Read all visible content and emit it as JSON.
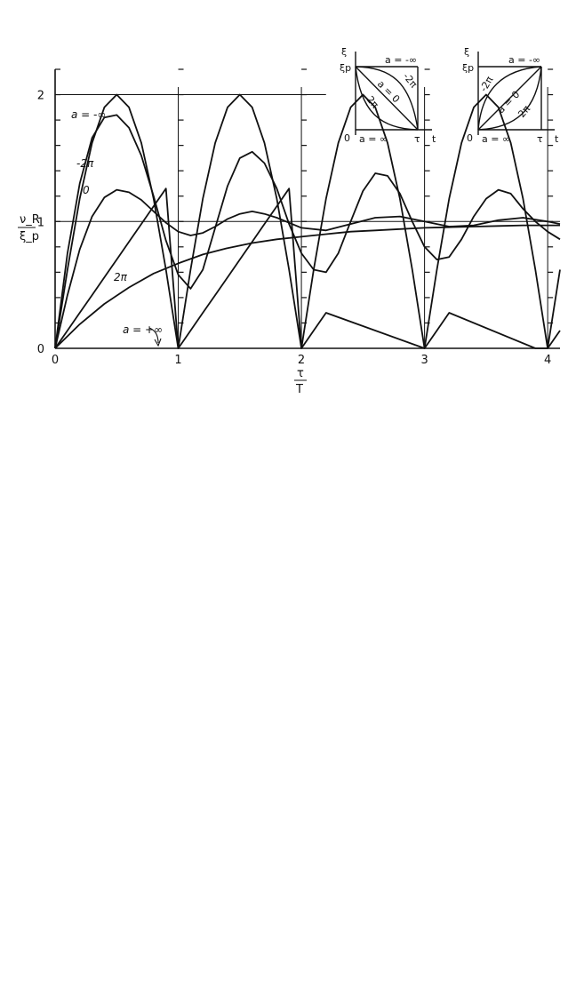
{
  "chart_data": {
    "type": "line",
    "xlabel": "τ/T",
    "xlabel_num": "τ",
    "xlabel_den": "T",
    "ylabel": "ν_R/ξ_p",
    "ylabel_num": "ν_R",
    "ylabel_den": "ξ_p",
    "xlim": [
      0,
      4.1
    ],
    "ylim": [
      0,
      2.2
    ],
    "x_ticks": [
      0,
      1,
      2,
      3,
      4
    ],
    "x_tick_labels": [
      "0",
      "1",
      "2",
      "3",
      "4"
    ],
    "y_ticks": [
      0,
      1,
      2
    ],
    "y_tick_labels": [
      "0",
      "1",
      "2"
    ],
    "reference_lines": [
      1,
      2
    ],
    "grid": "major vertical lines at integers",
    "series": [
      {
        "name": "a = -∞",
        "label": "a = -∞",
        "x": [
          0,
          0.1,
          0.2,
          0.3,
          0.4,
          0.5,
          0.6,
          0.7,
          0.8,
          0.9,
          1.0,
          1.1,
          1.2,
          1.3,
          1.4,
          1.5,
          1.6,
          1.7,
          1.8,
          1.9,
          2.0,
          2.1,
          2.2,
          2.3,
          2.4,
          2.5,
          2.6,
          2.7,
          2.8,
          2.9,
          3.0,
          3.1,
          3.2,
          3.3,
          3.4,
          3.5,
          3.6,
          3.7,
          3.8,
          3.9,
          4.0,
          4.1
        ],
        "y": [
          0,
          0.62,
          1.18,
          1.62,
          1.9,
          2.0,
          1.9,
          1.62,
          1.18,
          0.62,
          0,
          0.62,
          1.18,
          1.62,
          1.9,
          2.0,
          1.9,
          1.62,
          1.18,
          0.62,
          0,
          0.62,
          1.18,
          1.62,
          1.9,
          2.0,
          1.9,
          1.62,
          1.18,
          0.62,
          0,
          0.62,
          1.18,
          1.62,
          1.9,
          2.0,
          1.9,
          1.62,
          1.18,
          0.62,
          0,
          0.62
        ]
      },
      {
        "name": "-2π",
        "label": "-2π",
        "x": [
          0,
          0.1,
          0.2,
          0.3,
          0.4,
          0.5,
          0.6,
          0.7,
          0.8,
          0.9,
          1.0,
          1.1,
          1.2,
          1.3,
          1.4,
          1.5,
          1.6,
          1.7,
          1.8,
          1.9,
          2.0,
          2.1,
          2.2,
          2.3,
          2.4,
          2.5,
          2.6,
          2.7,
          2.8,
          2.9,
          3.0,
          3.1,
          3.2,
          3.3,
          3.4,
          3.5,
          3.6,
          3.7,
          3.8,
          3.9,
          4.0,
          4.1
        ],
        "y": [
          0,
          0.75,
          1.3,
          1.66,
          1.82,
          1.84,
          1.74,
          1.52,
          1.2,
          0.85,
          0.58,
          0.47,
          0.62,
          0.95,
          1.28,
          1.5,
          1.55,
          1.46,
          1.26,
          0.98,
          0.75,
          0.62,
          0.6,
          0.75,
          1.0,
          1.24,
          1.38,
          1.36,
          1.22,
          1.0,
          0.8,
          0.7,
          0.72,
          0.86,
          1.04,
          1.18,
          1.25,
          1.22,
          1.1,
          1.0,
          0.92,
          0.86
        ]
      },
      {
        "name": "0",
        "label": "0",
        "x": [
          0,
          0.1,
          0.2,
          0.3,
          0.4,
          0.5,
          0.6,
          0.7,
          0.8,
          0.9,
          1.0,
          1.1,
          1.2,
          1.3,
          1.4,
          1.5,
          1.6,
          1.7,
          1.8,
          1.9,
          2.0,
          2.2,
          2.4,
          2.6,
          2.8,
          3.0,
          3.2,
          3.4,
          3.6,
          3.8,
          4.0,
          4.1
        ],
        "y": [
          0,
          0.42,
          0.78,
          1.04,
          1.19,
          1.25,
          1.23,
          1.17,
          1.08,
          0.99,
          0.92,
          0.89,
          0.91,
          0.96,
          1.02,
          1.06,
          1.08,
          1.06,
          1.03,
          0.99,
          0.95,
          0.93,
          0.98,
          1.03,
          1.04,
          1.0,
          0.96,
          0.97,
          1.01,
          1.03,
          1.0,
          0.98
        ]
      },
      {
        "name": "2π",
        "label": "2π",
        "x": [
          0,
          0.2,
          0.4,
          0.6,
          0.8,
          1.0,
          1.2,
          1.4,
          1.6,
          1.8,
          2.0,
          2.2,
          2.4,
          2.6,
          2.8,
          3.0,
          3.2,
          3.4,
          3.6,
          3.8,
          4.0,
          4.1
        ],
        "y": [
          0,
          0.19,
          0.35,
          0.48,
          0.59,
          0.67,
          0.74,
          0.79,
          0.83,
          0.86,
          0.88,
          0.9,
          0.92,
          0.93,
          0.94,
          0.95,
          0.955,
          0.96,
          0.965,
          0.97,
          0.97,
          0.97
        ]
      },
      {
        "name": "a = +∞",
        "label": "a = +∞",
        "x": [
          0,
          0.1,
          0.2,
          0.3,
          0.4,
          0.5,
          0.6,
          0.7,
          0.8,
          0.9,
          1.0,
          1.05,
          1.1,
          1.2,
          1.3,
          1.4,
          1.5,
          1.6,
          1.7,
          1.8,
          1.9,
          2.0,
          2.05,
          2.1,
          2.2,
          3.0,
          3.1,
          3.2,
          3.9,
          4.0,
          4.1
        ],
        "y": [
          0,
          0.14,
          0.28,
          0.42,
          0.56,
          0.7,
          0.84,
          0.98,
          1.12,
          1.26,
          0,
          0.07,
          0.14,
          0.28,
          0.42,
          0.56,
          0.7,
          0.84,
          0.98,
          1.12,
          1.26,
          0,
          0.07,
          0.14,
          0.28,
          0,
          0.14,
          0.28,
          0,
          0,
          0.14
        ]
      }
    ],
    "annotations": [
      {
        "text": "a = -∞"
      },
      {
        "text": "-2π"
      },
      {
        "text": "0"
      },
      {
        "text": "2π"
      },
      {
        "text": "a = +∞"
      }
    ]
  },
  "insets": [
    {
      "ylabel": "ξ",
      "y_level_label": "ξp",
      "origin_label": "0",
      "x_end_label": "τ",
      "x_axis_label": "t",
      "labels": [
        "a = -∞",
        "-2π",
        "a = 0",
        "2π",
        "a = ∞"
      ]
    },
    {
      "ylabel": "ξ",
      "y_level_label": "ξp",
      "origin_label": "0",
      "x_end_label": "τ",
      "x_axis_label": "t",
      "labels": [
        "a = -∞",
        "-2π",
        "a = 0",
        "2π",
        "a = ∞"
      ]
    }
  ]
}
